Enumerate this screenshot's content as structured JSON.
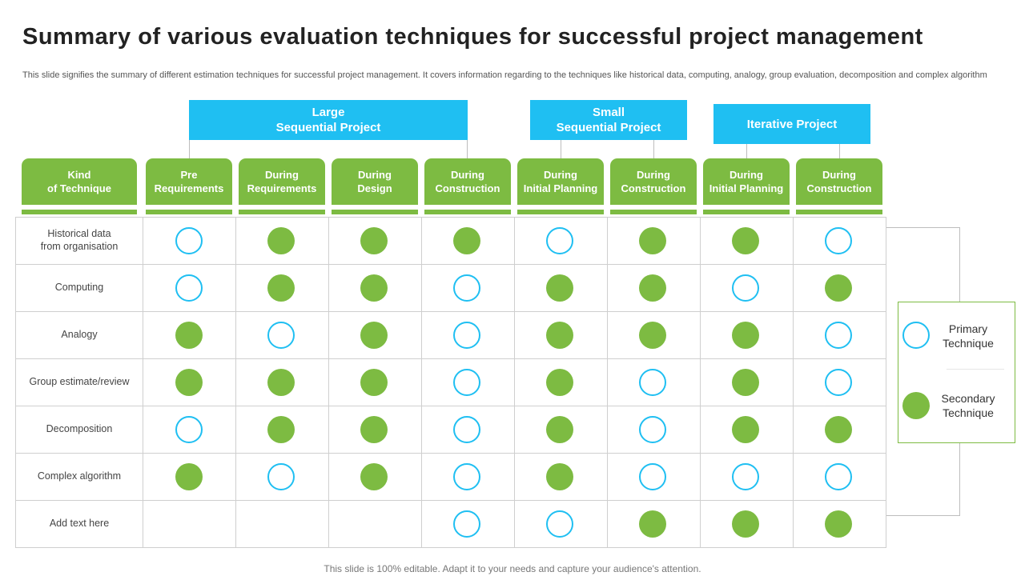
{
  "title": "Summary of various evaluation techniques for successful project management",
  "subtitle": "This slide signifies the summary of different estimation techniques for successful project management. It covers information regarding to the techniques like historical data, computing, analogy, group evaluation, decomposition and complex algorithm",
  "groups": [
    {
      "label": "Large\nSequential Project"
    },
    {
      "label": "Small\nSequential Project"
    },
    {
      "label": "Iterative Project"
    }
  ],
  "columns": [
    {
      "label": "Kind\nof Technique"
    },
    {
      "label": "Pre\nRequirements"
    },
    {
      "label": "During\nRequirements"
    },
    {
      "label": "During\nDesign"
    },
    {
      "label": "During\nConstruction"
    },
    {
      "label": "During\nInitial Planning"
    },
    {
      "label": "During\nConstruction"
    },
    {
      "label": "During\nInitial Planning"
    },
    {
      "label": "During\nConstruction"
    }
  ],
  "rows": [
    {
      "label": "Historical data\nfrom organisation",
      "cells": [
        "P",
        "S",
        "S",
        "S",
        "P",
        "S",
        "S",
        "P"
      ]
    },
    {
      "label": "Computing",
      "cells": [
        "P",
        "S",
        "S",
        "P",
        "S",
        "S",
        "P",
        "S"
      ]
    },
    {
      "label": "Analogy",
      "cells": [
        "S",
        "P",
        "S",
        "P",
        "S",
        "S",
        "S",
        "P"
      ]
    },
    {
      "label": "Group estimate/review",
      "cells": [
        "S",
        "S",
        "S",
        "P",
        "S",
        "P",
        "S",
        "P"
      ]
    },
    {
      "label": "Decomposition",
      "cells": [
        "P",
        "S",
        "S",
        "P",
        "S",
        "P",
        "S",
        "S"
      ]
    },
    {
      "label": "Complex algorithm",
      "cells": [
        "S",
        "P",
        "S",
        "P",
        "S",
        "P",
        "P",
        "P"
      ]
    },
    {
      "label": "Add text here",
      "cells": [
        "",
        "",
        "",
        "P",
        "P",
        "S",
        "S",
        "S"
      ]
    }
  ],
  "legend": {
    "primary": "Primary\nTechnique",
    "secondary": "Secondary\nTechnique"
  },
  "colors": {
    "primary": "#1fbff2",
    "secondary": "#7dbb42"
  },
  "footer": "This slide is 100% editable. Adapt it to your needs and capture your audience's attention."
}
